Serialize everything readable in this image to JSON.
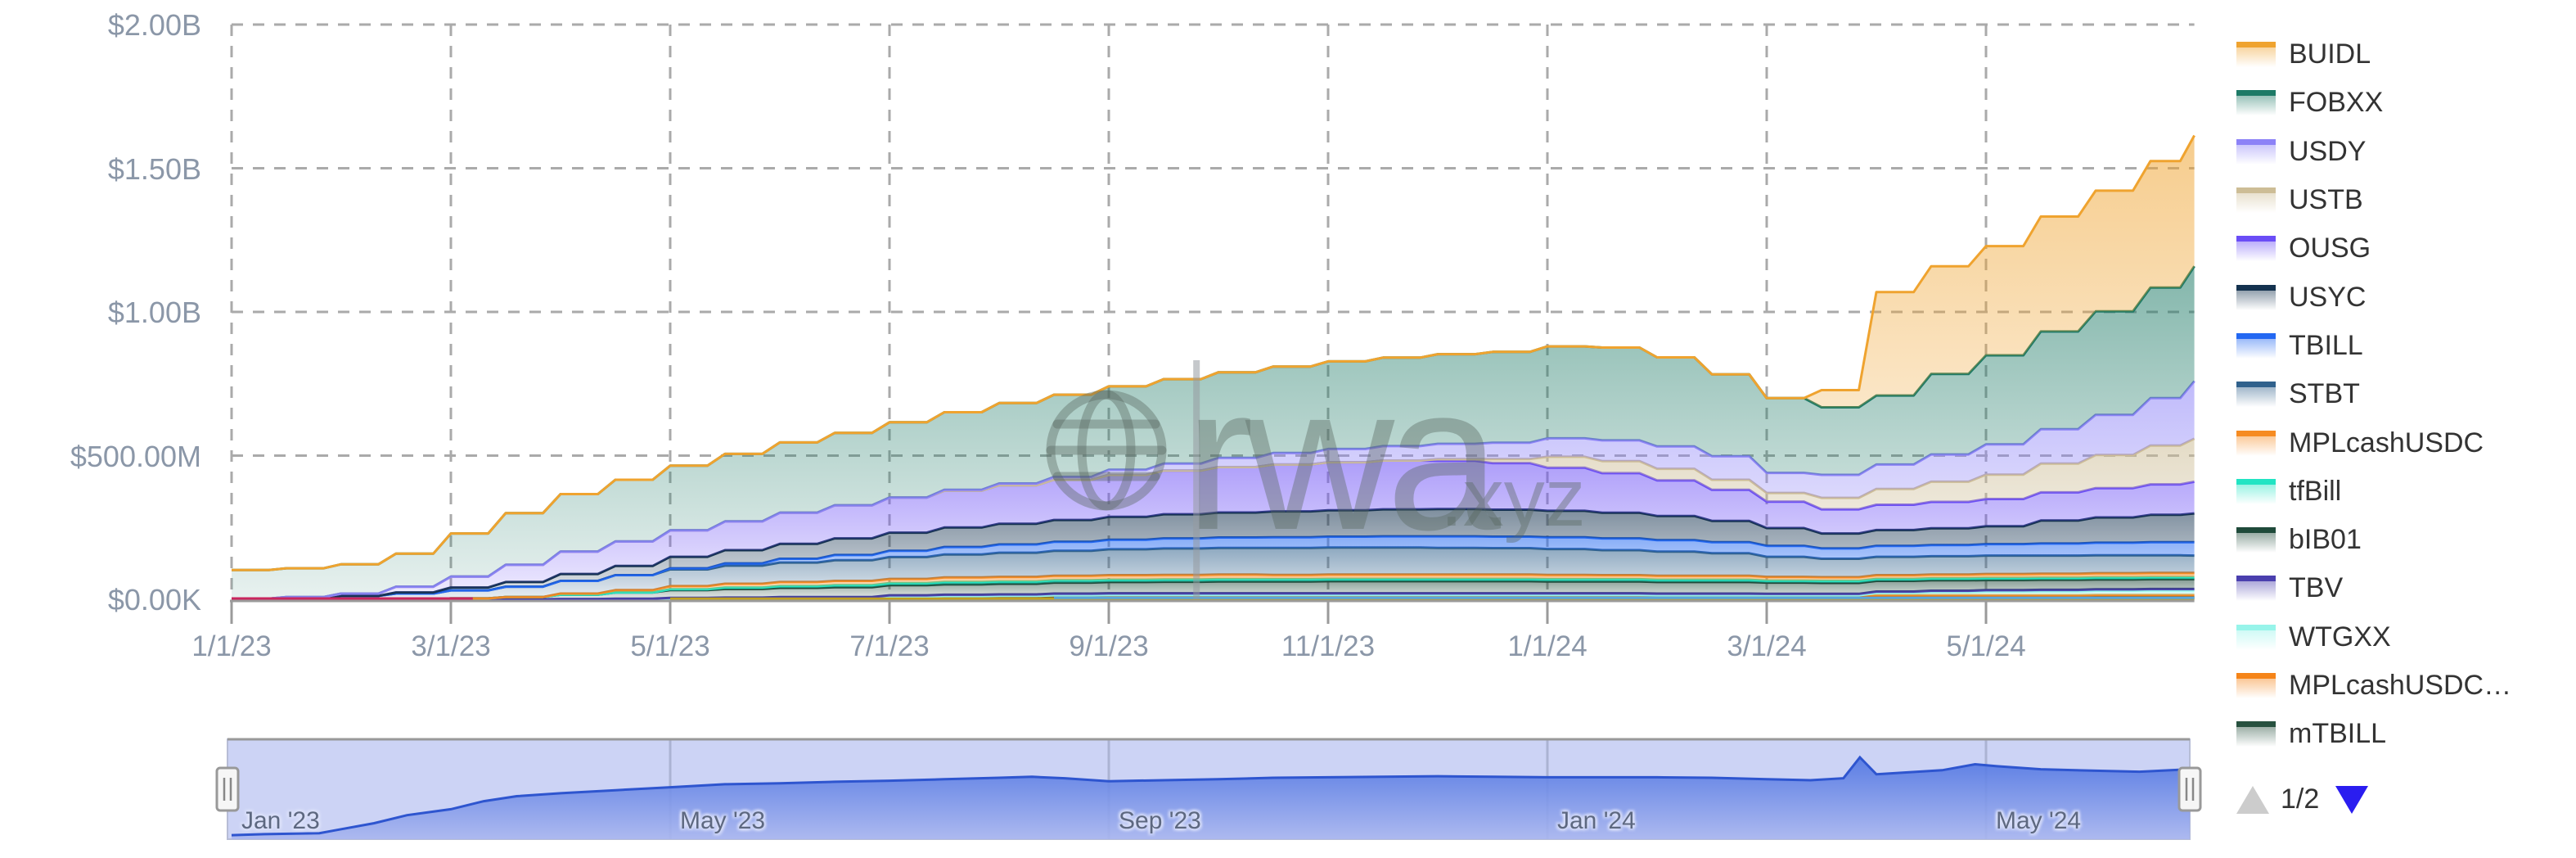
{
  "watermark": {
    "brand": "rwa",
    "tld": ".xyz"
  },
  "y_axis": {
    "ticks": [
      {
        "label": "$2.00B",
        "value_m": 2000
      },
      {
        "label": "$1.50B",
        "value_m": 1500
      },
      {
        "label": "$1.00B",
        "value_m": 1000
      },
      {
        "label": "$500.00M",
        "value_m": 500
      },
      {
        "label": "$0.00K",
        "value_m": 0
      }
    ]
  },
  "x_axis": {
    "ticks": [
      {
        "label": "1/1/23",
        "month": 0
      },
      {
        "label": "3/1/23",
        "month": 2
      },
      {
        "label": "5/1/23",
        "month": 4
      },
      {
        "label": "7/1/23",
        "month": 6
      },
      {
        "label": "9/1/23",
        "month": 8
      },
      {
        "label": "11/1/23",
        "month": 10
      },
      {
        "label": "1/1/24",
        "month": 12
      },
      {
        "label": "3/1/24",
        "month": 14
      },
      {
        "label": "5/1/24",
        "month": 16
      }
    ]
  },
  "legend": {
    "items": [
      {
        "label": "BUIDL",
        "color": "#efa32f"
      },
      {
        "label": "FOBXX",
        "color": "#1d7a66"
      },
      {
        "label": "USDY",
        "color": "#8c82f7"
      },
      {
        "label": "USTB",
        "color": "#cdbd96"
      },
      {
        "label": "OUSG",
        "color": "#6a4df6"
      },
      {
        "label": "USYC",
        "color": "#14324f"
      },
      {
        "label": "TBILL",
        "color": "#2368f2"
      },
      {
        "label": "STBT",
        "color": "#30618c"
      },
      {
        "label": "MPLcashUSDC",
        "color": "#f68b21"
      },
      {
        "label": "tfBill",
        "color": "#21e4c3"
      },
      {
        "label": "bIB01",
        "color": "#1f4a3a"
      },
      {
        "label": "TBV",
        "color": "#4a3fae"
      },
      {
        "label": "WTGXX",
        "color": "#97f4ea"
      },
      {
        "label": "MPLcashUSDC…",
        "color": "#f58418"
      },
      {
        "label": "mTBILL",
        "color": "#27513f"
      }
    ],
    "pagination": {
      "current": "1/2",
      "prev_color": "#cccccc",
      "next_color": "#2a1df0"
    }
  },
  "navigator": {
    "labels": [
      {
        "text": "Jan '23",
        "month": 0
      },
      {
        "text": "May '23",
        "month": 4
      },
      {
        "text": "Sep '23",
        "month": 8
      },
      {
        "text": "Jan '24",
        "month": 12
      },
      {
        "text": "May '24",
        "month": 16
      }
    ],
    "series": {
      "line_color": "#2e55cf",
      "fill_top": "#4e74e2",
      "fill_bottom": "#a9b6ef",
      "background": "#ccd3f5",
      "x": [
        0,
        0.3,
        0.8,
        1,
        1.3,
        1.6,
        2,
        2.3,
        2.6,
        3,
        3.5,
        4,
        4.5,
        5,
        5.5,
        6,
        6.5,
        7,
        7.3,
        7.6,
        8,
        8.5,
        9,
        9.5,
        10,
        10.5,
        11,
        11.5,
        12,
        12.5,
        13,
        13.5,
        14,
        14.4,
        14.7,
        14.85,
        15,
        15.3,
        15.6,
        15.9,
        16.1,
        16.5,
        17,
        17.4,
        17.86
      ],
      "values_pct": [
        0.04,
        0.05,
        0.06,
        0.1,
        0.16,
        0.24,
        0.3,
        0.38,
        0.43,
        0.46,
        0.49,
        0.52,
        0.55,
        0.56,
        0.575,
        0.585,
        0.6,
        0.615,
        0.625,
        0.61,
        0.58,
        0.59,
        0.6,
        0.615,
        0.62,
        0.625,
        0.63,
        0.625,
        0.62,
        0.62,
        0.62,
        0.615,
        0.6,
        0.59,
        0.61,
        0.82,
        0.65,
        0.67,
        0.69,
        0.75,
        0.73,
        0.7,
        0.685,
        0.675,
        0.7
      ]
    }
  },
  "chart_data": {
    "type": "area",
    "stacking": "normal",
    "title": "",
    "xlabel": "",
    "ylabel": "",
    "x_unit": "months since 2023-01-01 (x tick dates are M/D/YY)",
    "y_unit": "USD millions",
    "ylim": [
      0,
      2000
    ],
    "grid": "dashed",
    "legend_position": "right",
    "x": [
      0,
      0.5,
      1,
      1.5,
      2,
      2.5,
      3,
      3.5,
      4,
      4.5,
      5,
      5.5,
      6,
      6.5,
      7,
      7.5,
      8,
      8.5,
      9,
      9.5,
      10,
      10.5,
      11,
      11.5,
      12,
      12.5,
      13,
      13.5,
      14,
      14.5,
      15,
      15.5,
      16,
      16.5,
      17,
      17.5,
      17.9
    ],
    "series": [
      {
        "name": "BUIDL",
        "color": "#efa32f",
        "values": [
          0,
          0,
          0,
          0,
          0,
          0,
          0,
          0,
          0,
          0,
          0,
          0,
          0,
          0,
          0,
          0,
          0,
          0,
          0,
          0,
          0,
          0,
          0,
          0,
          0,
          0,
          0,
          0,
          0,
          60,
          360,
          375,
          380,
          400,
          420,
          440,
          455
        ]
      },
      {
        "name": "FOBXX",
        "color": "#1d7a66",
        "values": [
          100,
          100,
          102,
          115,
          150,
          180,
          200,
          215,
          225,
          235,
          245,
          252,
          262,
          270,
          280,
          286,
          290,
          294,
          298,
          301,
          305,
          308,
          312,
          316,
          320,
          323,
          310,
          285,
          260,
          235,
          240,
          280,
          310,
          340,
          360,
          385,
          400
        ]
      },
      {
        "name": "USDY",
        "color": "#8c82f7",
        "values": [
          0,
          0,
          0,
          0,
          0,
          0,
          0,
          0,
          0,
          0,
          0,
          0,
          0,
          3,
          6,
          10,
          18,
          24,
          32,
          40,
          46,
          50,
          53,
          57,
          64,
          72,
          78,
          82,
          70,
          80,
          85,
          95,
          105,
          120,
          140,
          165,
          200
        ]
      },
      {
        "name": "USTB",
        "color": "#cdbd96",
        "values": [
          0,
          0,
          0,
          0,
          0,
          0,
          0,
          0,
          0,
          0,
          0,
          0,
          0,
          0,
          0,
          0,
          0,
          0,
          0,
          0,
          0,
          0,
          6,
          14,
          38,
          42,
          40,
          35,
          30,
          40,
          55,
          70,
          85,
          100,
          115,
          135,
          150
        ]
      },
      {
        "name": "OUSG",
        "color": "#6a4df6",
        "values": [
          0,
          2,
          8,
          20,
          38,
          60,
          78,
          85,
          92,
          100,
          108,
          115,
          122,
          128,
          134,
          140,
          146,
          152,
          158,
          163,
          167,
          170,
          168,
          162,
          150,
          138,
          124,
          108,
          92,
          84,
          88,
          92,
          95,
          98,
          102,
          106,
          110
        ]
      },
      {
        "name": "USYC",
        "color": "#14324f",
        "values": [
          0,
          0,
          0,
          4,
          10,
          16,
          24,
          32,
          40,
          46,
          52,
          58,
          63,
          68,
          72,
          76,
          80,
          84,
          87,
          90,
          92,
          94,
          95,
          94,
          92,
          89,
          84,
          74,
          62,
          52,
          55,
          58,
          62,
          80,
          88,
          95,
          100
        ]
      },
      {
        "name": "TBILL",
        "color": "#2368f2",
        "values": [
          0,
          0,
          0,
          0,
          0,
          0,
          0,
          0,
          4,
          8,
          13,
          18,
          22,
          26,
          29,
          31,
          33,
          35,
          36,
          37,
          38,
          39,
          40,
          40,
          41,
          41,
          40,
          39,
          38,
          36,
          38,
          39,
          40,
          42,
          44,
          46,
          47
        ]
      },
      {
        "name": "STBT",
        "color": "#30618c",
        "values": [
          2,
          6,
          12,
          20,
          28,
          36,
          44,
          52,
          58,
          63,
          68,
          72,
          76,
          80,
          84,
          87,
          90,
          92,
          93,
          94,
          94,
          94,
          93,
          92,
          90,
          87,
          84,
          78,
          70,
          64,
          64,
          64,
          64,
          63,
          62,
          61,
          60
        ]
      },
      {
        "name": "MPLcashUSDC",
        "color": "#f68b21",
        "values": [
          0,
          0,
          0,
          0,
          0,
          0,
          4,
          8,
          11,
          13,
          14,
          15,
          15,
          16,
          16,
          16,
          16,
          16,
          16,
          15,
          15,
          15,
          15,
          15,
          15,
          14,
          14,
          14,
          13,
          13,
          13,
          13,
          14,
          14,
          15,
          15,
          15
        ]
      },
      {
        "name": "tfBill",
        "color": "#21e4c3",
        "values": [
          0,
          0,
          0,
          0,
          0,
          0,
          0,
          0,
          3,
          5,
          6,
          7,
          7,
          8,
          8,
          8,
          8,
          8,
          8,
          8,
          8,
          8,
          8,
          8,
          8,
          8,
          8,
          8,
          7,
          7,
          7,
          7,
          7,
          7,
          7,
          7,
          7
        ]
      },
      {
        "name": "bIB01",
        "color": "#1f4a3a",
        "values": [
          0,
          0,
          0,
          0,
          3,
          8,
          15,
          22,
          27,
          30,
          32,
          34,
          35,
          36,
          37,
          38,
          39,
          40,
          41,
          41,
          42,
          42,
          42,
          42,
          41,
          41,
          40,
          40,
          39,
          38,
          37,
          36,
          35,
          35,
          34,
          34,
          34
        ]
      },
      {
        "name": "TBV",
        "color": "#4a3fae",
        "values": [
          0,
          0,
          0,
          0,
          0,
          0,
          1,
          2,
          3,
          3,
          4,
          4,
          5,
          5,
          5,
          6,
          6,
          6,
          6,
          6,
          6,
          6,
          6,
          6,
          6,
          6,
          6,
          6,
          5,
          5,
          5,
          5,
          5,
          5,
          5,
          5,
          5
        ]
      },
      {
        "name": "WTGXX",
        "color": "#97f4ea",
        "values": [
          0,
          0,
          0,
          0,
          0,
          0,
          0,
          0,
          0,
          0,
          0,
          0,
          0,
          0,
          0,
          0,
          0,
          0,
          0,
          0,
          0,
          0,
          0,
          0,
          0,
          0,
          0,
          0,
          0,
          0,
          8,
          11,
          13,
          14,
          15,
          16,
          16
        ]
      },
      {
        "name": "MPLcashUSDC…",
        "color": "#f58418",
        "values": [
          0,
          0,
          0,
          0,
          0,
          0,
          0,
          0,
          0,
          0,
          0,
          0,
          4,
          6,
          7,
          8,
          9,
          9,
          9,
          9,
          9,
          9,
          9,
          9,
          9,
          9,
          8,
          8,
          8,
          8,
          8,
          8,
          8,
          8,
          8,
          8,
          8
        ]
      },
      {
        "name": "mTBILL",
        "color": "#27513f",
        "values": [
          0,
          0,
          0,
          0,
          0,
          0,
          0,
          0,
          2,
          3,
          4,
          4,
          5,
          5,
          5,
          6,
          6,
          6,
          6,
          6,
          6,
          6,
          6,
          6,
          6,
          6,
          6,
          6,
          6,
          6,
          6,
          6,
          6,
          6,
          7,
          7,
          7
        ]
      }
    ],
    "minor_unlabeled_lines": [
      {
        "name": "red-line",
        "color": "#c9265e",
        "x_start": 0,
        "x_end": 2.2,
        "value_m": 3
      },
      {
        "name": "gold-line",
        "color": "#bfa020",
        "x_start": 4,
        "x_end": 17.9,
        "value_m": 2
      },
      {
        "name": "skyblue-line",
        "color": "#58a6dd",
        "x_start": 7.5,
        "x_end": 17.9,
        "value_m": 5
      }
    ],
    "artifact_crosshair_month": 8.8
  }
}
